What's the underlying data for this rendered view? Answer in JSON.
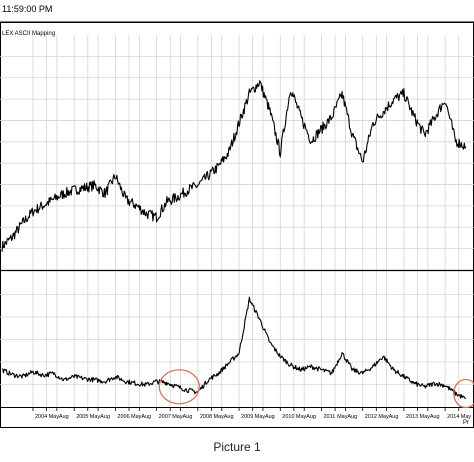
{
  "header": {
    "time": "11:59:00 PM",
    "symbol_label": "LEX  ASCII Mapping"
  },
  "caption": "Picture 1",
  "corner_label": "Pr",
  "colors": {
    "background": "#ffffff",
    "grid": "#d4d4d4",
    "line": "#000000",
    "highlight_circle": "#d9735b",
    "divider": "#000000"
  },
  "chart_data": [
    {
      "type": "line",
      "title": "",
      "xlabel": "",
      "ylabel": "",
      "grid": true,
      "x": [
        2003.25,
        2003.5,
        2003.75,
        2004.0,
        2004.25,
        2004.5,
        2004.75,
        2005.0,
        2005.25,
        2005.5,
        2005.75,
        2006.0,
        2006.25,
        2006.5,
        2006.75,
        2007.0,
        2007.25,
        2007.5,
        2007.75,
        2008.0,
        2008.25,
        2008.5,
        2008.75,
        2009.0,
        2009.25,
        2009.5,
        2009.75,
        2010.0,
        2010.25,
        2010.5,
        2010.75,
        2011.0,
        2011.25,
        2011.5,
        2011.75,
        2012.0,
        2012.25,
        2012.5,
        2012.75,
        2013.0,
        2013.25,
        2013.5,
        2013.75,
        2014.0,
        2014.25,
        2014.5
      ],
      "y": [
        0.2,
        0.28,
        0.4,
        0.5,
        0.55,
        0.6,
        0.65,
        0.68,
        0.7,
        0.72,
        0.65,
        0.8,
        0.6,
        0.55,
        0.48,
        0.45,
        0.58,
        0.62,
        0.68,
        0.72,
        0.8,
        0.88,
        1.0,
        1.25,
        1.5,
        1.6,
        1.35,
        1.0,
        1.55,
        1.3,
        1.1,
        1.2,
        1.3,
        1.5,
        1.15,
        0.92,
        1.25,
        1.35,
        1.45,
        1.5,
        1.3,
        1.15,
        1.3,
        1.45,
        1.1,
        1.05
      ]
    },
    {
      "type": "line",
      "title": "",
      "xlabel": "",
      "ylabel": "",
      "grid": true,
      "x": [
        2003.25,
        2003.5,
        2003.75,
        2004.0,
        2004.25,
        2004.5,
        2004.75,
        2005.0,
        2005.25,
        2005.5,
        2005.75,
        2006.0,
        2006.25,
        2006.5,
        2006.75,
        2007.0,
        2007.25,
        2007.5,
        2007.75,
        2008.0,
        2008.25,
        2008.5,
        2008.75,
        2009.0,
        2009.25,
        2009.5,
        2009.75,
        2010.0,
        2010.25,
        2010.5,
        2010.75,
        2011.0,
        2011.25,
        2011.5,
        2011.75,
        2012.0,
        2012.25,
        2012.5,
        2012.75,
        2013.0,
        2013.25,
        2013.5,
        2013.75,
        2014.0,
        2014.25,
        2014.5
      ],
      "y": [
        0.55,
        0.48,
        0.45,
        0.52,
        0.47,
        0.5,
        0.4,
        0.45,
        0.42,
        0.4,
        0.38,
        0.45,
        0.38,
        0.35,
        0.33,
        0.38,
        0.36,
        0.3,
        0.25,
        0.22,
        0.4,
        0.5,
        0.65,
        0.8,
        1.6,
        1.3,
        0.95,
        0.75,
        0.62,
        0.55,
        0.6,
        0.55,
        0.5,
        0.8,
        0.55,
        0.5,
        0.6,
        0.75,
        0.55,
        0.45,
        0.35,
        0.3,
        0.35,
        0.32,
        0.2,
        0.12
      ],
      "annotations": [
        "highlight circle around 2007 low",
        "highlight circle at 2014 low"
      ]
    }
  ],
  "x_axis": {
    "tick_labels": [
      "2004",
      "May",
      "Aug",
      "2005",
      "May",
      "Aug",
      "2006",
      "May",
      "Aug",
      "2007",
      "May",
      "Aug",
      "2008",
      "May",
      "Aug",
      "2009",
      "May",
      "Aug",
      "2010",
      "May",
      "Aug",
      "2011",
      "May",
      "Aug",
      "2012",
      "May",
      "Aug",
      "2013",
      "May",
      "Aug",
      "2014",
      "May"
    ],
    "tick_values": [
      2004.0,
      2004.33,
      2004.58,
      2005.0,
      2005.33,
      2005.58,
      2006.0,
      2006.33,
      2006.58,
      2007.0,
      2007.33,
      2007.58,
      2008.0,
      2008.33,
      2008.58,
      2009.0,
      2009.33,
      2009.58,
      2010.0,
      2010.33,
      2010.58,
      2011.0,
      2011.33,
      2011.58,
      2012.0,
      2012.33,
      2012.58,
      2013.0,
      2013.33,
      2013.58,
      2014.0,
      2014.33
    ],
    "range": [
      2003.2,
      2014.7
    ]
  }
}
